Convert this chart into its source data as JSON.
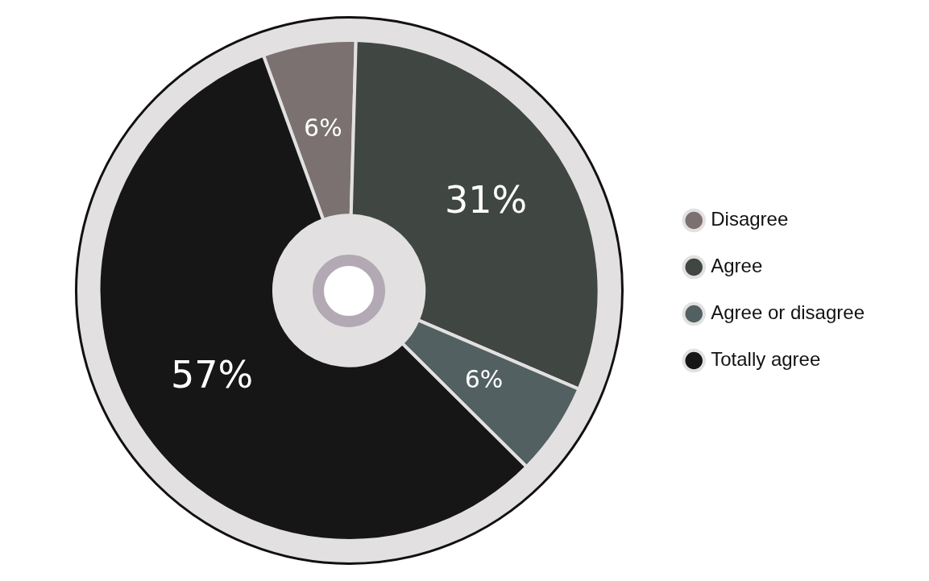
{
  "chart_data": {
    "type": "donut",
    "categories": [
      "Disagree",
      "Agree",
      "Agree or disagree",
      "Totally agree"
    ],
    "values": [
      6,
      31,
      6,
      57
    ],
    "colors": [
      "#7a7170",
      "#404641",
      "#536061",
      "#161616"
    ],
    "value_labels": [
      "6%",
      "31%",
      "6%",
      "57%"
    ],
    "legend": "right"
  }
}
